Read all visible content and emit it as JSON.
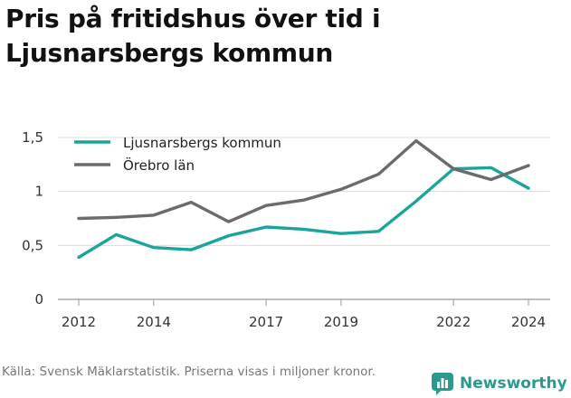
{
  "title": "Pris på fritidshus över tid i Ljusnarsbergs kommun",
  "source": "Källa: Svensk Mäklarstatistik. Priserna visas i miljoner kronor.",
  "brand": {
    "name": "Newsworthy",
    "icon": "newsworthy-logo-icon",
    "color": "#2a9a8d"
  },
  "chart_data": {
    "type": "line",
    "title": "Pris på fritidshus över tid i Ljusnarsbergs kommun",
    "xlabel": "",
    "ylabel": "",
    "xlim": [
      2012,
      2024
    ],
    "ylim": [
      0,
      1.5
    ],
    "x_ticks": [
      2012,
      2014,
      2017,
      2019,
      2022,
      2024
    ],
    "x_tick_labels": [
      "2012",
      "2014",
      "2017",
      "2019",
      "2022",
      "2024"
    ],
    "y_ticks": [
      0,
      0.5,
      1,
      1.5
    ],
    "y_tick_labels": [
      "0",
      "0,5",
      "1",
      "1,5"
    ],
    "grid": "horizontal",
    "legend_position": "top-left",
    "series": [
      {
        "name": "Ljusnarsbergs kommun",
        "color": "#1aa598",
        "x": [
          2012,
          2013,
          2014,
          2015,
          2016,
          2017,
          2018,
          2019,
          2020,
          2021,
          2022,
          2023,
          2024
        ],
        "values": [
          0.39,
          0.6,
          0.48,
          0.46,
          0.59,
          0.67,
          0.65,
          0.61,
          0.63,
          0.91,
          1.21,
          1.22,
          1.03
        ]
      },
      {
        "name": "Örebro län",
        "color": "#6b6b6e",
        "x": [
          2012,
          2013,
          2014,
          2015,
          2016,
          2017,
          2018,
          2019,
          2020,
          2021,
          2022,
          2023,
          2024
        ],
        "values": [
          0.75,
          0.76,
          0.78,
          0.9,
          0.72,
          0.87,
          0.92,
          1.02,
          1.16,
          1.47,
          1.21,
          1.11,
          1.24
        ]
      }
    ]
  }
}
